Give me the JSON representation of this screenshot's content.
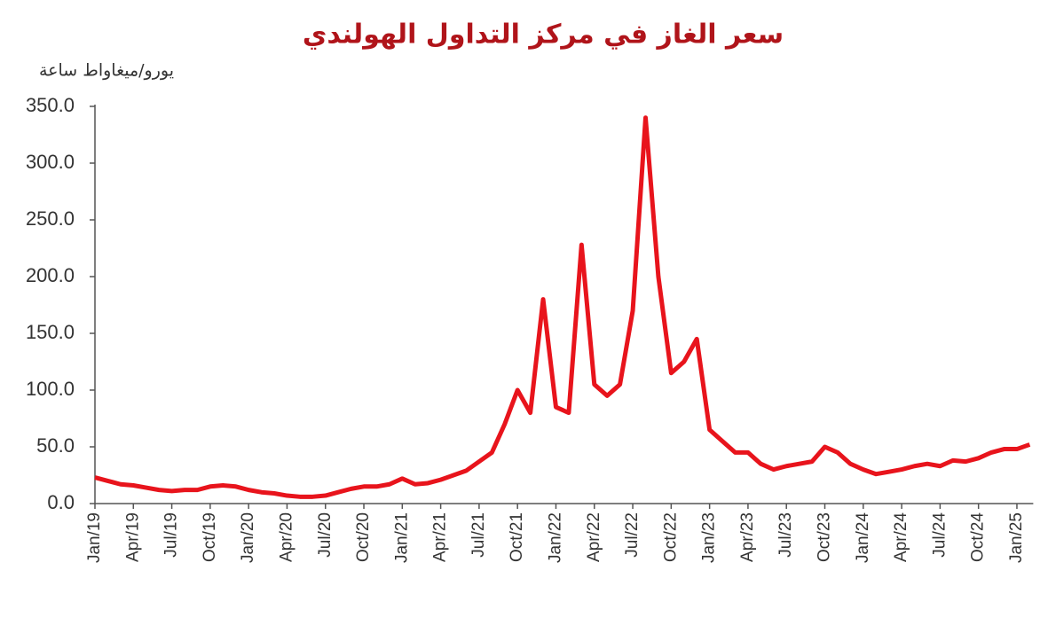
{
  "chart_data": {
    "type": "line",
    "title": "سعر الغاز في مركز التداول الهولندي",
    "y_label": "يورو/ميغاواط ساعة",
    "color": "#e8141c",
    "categories": [
      "Jan/19",
      null,
      null,
      "Apr/19",
      null,
      null,
      "Jul/19",
      null,
      null,
      "Oct/19",
      null,
      null,
      "Jan/20",
      null,
      null,
      "Apr/20",
      null,
      null,
      "Jul/20",
      null,
      null,
      "Oct/20",
      null,
      null,
      "Jan/21",
      null,
      null,
      "Apr/21",
      null,
      null,
      "Jul/21",
      null,
      null,
      "Oct/21",
      null,
      null,
      "Jan/22",
      null,
      null,
      "Apr/22",
      null,
      null,
      "Jul/22",
      null,
      null,
      "Oct/22",
      null,
      null,
      "Jan/23",
      null,
      null,
      "Apr/23",
      null,
      null,
      "Jul/23",
      null,
      null,
      "Oct/23",
      null,
      null,
      "Jan/24",
      null,
      null,
      "Apr/24",
      null,
      null,
      "Jul/24",
      null,
      null,
      "Oct/24",
      null,
      null,
      "Jan/25",
      null
    ],
    "values": [
      23,
      20,
      17,
      16,
      14,
      12,
      11,
      12,
      12,
      15,
      16,
      15,
      12,
      10,
      9,
      7,
      6,
      6,
      7,
      10,
      13,
      15,
      15,
      17,
      22,
      17,
      18,
      21,
      25,
      29,
      37,
      45,
      70,
      100,
      80,
      180,
      85,
      80,
      228,
      105,
      95,
      105,
      170,
      340,
      200,
      115,
      125,
      145,
      65,
      55,
      45,
      45,
      35,
      30,
      33,
      35,
      37,
      50,
      45,
      35,
      30,
      26,
      28,
      30,
      33,
      35,
      33,
      38,
      37,
      40,
      45,
      48,
      48,
      52
    ],
    "ylim": [
      0,
      350
    ],
    "yticks": [
      {
        "value": 0,
        "label": "0.0"
      },
      {
        "value": 50,
        "label": "50.0"
      },
      {
        "value": 100,
        "label": "100.0"
      },
      {
        "value": 150,
        "label": "150.0"
      },
      {
        "value": 200,
        "label": "200.0"
      },
      {
        "value": 250,
        "label": "250.0"
      },
      {
        "value": 300,
        "label": "300.0"
      },
      {
        "value": 350,
        "label": "350.0"
      }
    ]
  }
}
